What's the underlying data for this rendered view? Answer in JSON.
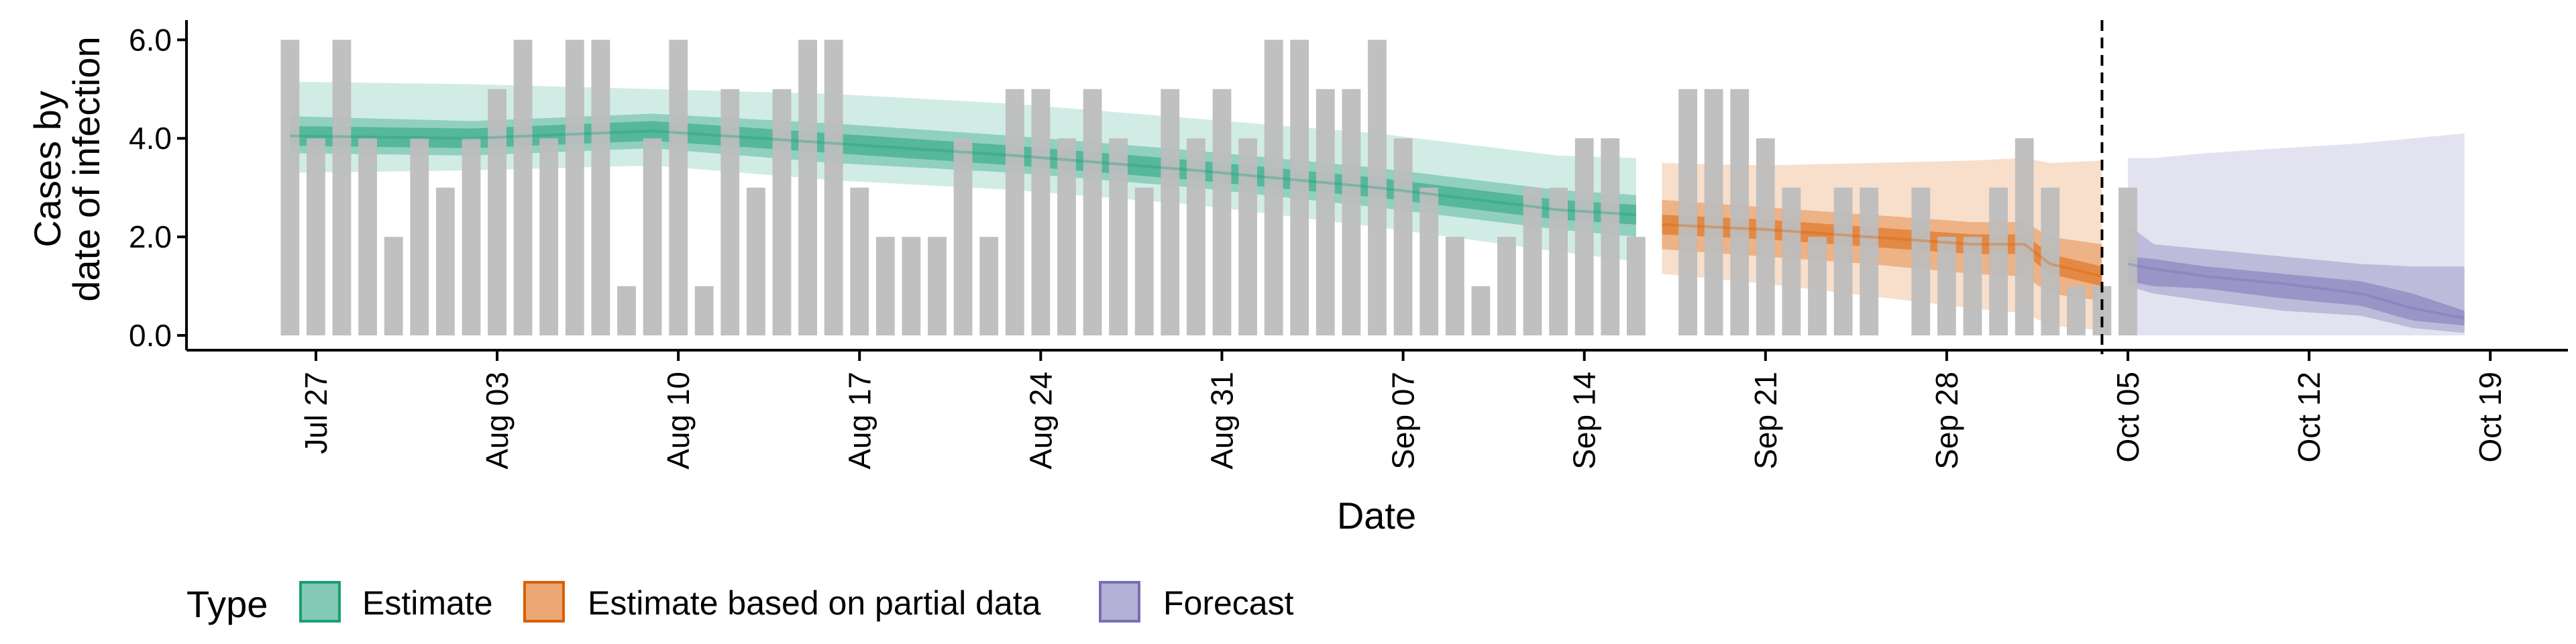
{
  "chart_data": {
    "type": "bar",
    "xlabel": "Date",
    "ylabel_lines": [
      "Cases by",
      "date of infection"
    ],
    "y_ticks": [
      "0.0",
      "2.0",
      "4.0",
      "6.0"
    ],
    "y_tick_values": [
      0,
      2,
      4,
      6
    ],
    "ylim": [
      -0.3,
      6.4
    ],
    "xlim": [
      "2020-07-22",
      "2020-10-22"
    ],
    "x_ticks": [
      {
        "date": "2020-07-27",
        "label": "Jul 27"
      },
      {
        "date": "2020-08-03",
        "label": "Aug 03"
      },
      {
        "date": "2020-08-10",
        "label": "Aug 10"
      },
      {
        "date": "2020-08-17",
        "label": "Aug 17"
      },
      {
        "date": "2020-08-24",
        "label": "Aug 24"
      },
      {
        "date": "2020-08-31",
        "label": "Aug 31"
      },
      {
        "date": "2020-09-07",
        "label": "Sep 07"
      },
      {
        "date": "2020-09-14",
        "label": "Sep 14"
      },
      {
        "date": "2020-09-21",
        "label": "Sep 21"
      },
      {
        "date": "2020-09-28",
        "label": "Sep 28"
      },
      {
        "date": "2020-10-05",
        "label": "Oct 05"
      },
      {
        "date": "2020-10-12",
        "label": "Oct 12"
      },
      {
        "date": "2020-10-19",
        "label": "Oct 19"
      }
    ],
    "bar_color": "#bdbdbd",
    "bars_start": "2020-07-26",
    "bars": [
      6,
      4,
      6,
      4,
      2,
      4,
      3,
      4,
      5,
      6,
      4,
      6,
      6,
      1,
      4,
      6,
      1,
      5,
      3,
      5,
      6,
      6,
      3,
      2,
      2,
      2,
      4,
      2,
      5,
      5,
      4,
      5,
      4,
      3,
      5,
      4,
      5,
      4,
      6,
      6,
      5,
      5,
      6,
      4,
      3,
      2,
      1,
      2,
      3,
      3,
      4,
      4,
      2,
      0,
      5,
      5,
      5,
      4,
      3,
      2,
      3,
      3,
      0,
      3,
      2,
      2,
      3,
      4,
      3,
      1,
      1,
      3
    ],
    "forecast_cutoff": "2020-10-04",
    "series": [
      {
        "name": "Estimate",
        "color": "#1b9e77",
        "dates": [
          "2020-07-26",
          "2020-08-02",
          "2020-08-09",
          "2020-08-16",
          "2020-08-23",
          "2020-08-30",
          "2020-09-06",
          "2020-09-13",
          "2020-09-16"
        ],
        "median": [
          4.05,
          4.0,
          4.15,
          3.9,
          3.65,
          3.35,
          3.0,
          2.55,
          2.45
        ],
        "ci20": [
          [
            3.85,
            4.25
          ],
          [
            3.8,
            4.2
          ],
          [
            3.95,
            4.35
          ],
          [
            3.7,
            4.1
          ],
          [
            3.45,
            3.85
          ],
          [
            3.15,
            3.55
          ],
          [
            2.8,
            3.2
          ],
          [
            2.35,
            2.75
          ],
          [
            2.25,
            2.65
          ]
        ],
        "ci50": [
          [
            3.7,
            4.45
          ],
          [
            3.65,
            4.35
          ],
          [
            3.8,
            4.5
          ],
          [
            3.5,
            4.3
          ],
          [
            3.3,
            4.05
          ],
          [
            3.0,
            3.75
          ],
          [
            2.6,
            3.4
          ],
          [
            2.15,
            2.95
          ],
          [
            2.0,
            2.85
          ]
        ],
        "ci90": [
          [
            3.3,
            5.15
          ],
          [
            3.35,
            5.1
          ],
          [
            3.45,
            5.0
          ],
          [
            3.15,
            4.9
          ],
          [
            2.95,
            4.7
          ],
          [
            2.65,
            4.4
          ],
          [
            2.2,
            4.1
          ],
          [
            1.7,
            3.65
          ],
          [
            1.5,
            3.6
          ]
        ]
      },
      {
        "name": "Estimate based on partial data",
        "color": "#d95f02",
        "dates": [
          "2020-09-17",
          "2020-09-21",
          "2020-09-25",
          "2020-09-29",
          "2020-10-01",
          "2020-10-02",
          "2020-10-04"
        ],
        "median": [
          2.25,
          2.15,
          2.0,
          1.85,
          1.85,
          1.45,
          1.2
        ],
        "ci20": [
          [
            2.05,
            2.45
          ],
          [
            1.95,
            2.35
          ],
          [
            1.8,
            2.2
          ],
          [
            1.65,
            2.05
          ],
          [
            1.65,
            2.05
          ],
          [
            1.25,
            1.65
          ],
          [
            1.0,
            1.4
          ]
        ],
        "ci50": [
          [
            1.75,
            2.75
          ],
          [
            1.6,
            2.6
          ],
          [
            1.45,
            2.45
          ],
          [
            1.25,
            2.3
          ],
          [
            1.2,
            2.3
          ],
          [
            0.85,
            2.0
          ],
          [
            0.7,
            1.85
          ]
        ],
        "ci90": [
          [
            1.25,
            3.5
          ],
          [
            1.05,
            3.45
          ],
          [
            0.8,
            3.5
          ],
          [
            0.55,
            3.55
          ],
          [
            0.45,
            3.6
          ],
          [
            0.2,
            3.5
          ],
          [
            0.1,
            3.55
          ]
        ]
      },
      {
        "name": "Forecast",
        "color": "#7570b3",
        "dates": [
          "2020-10-05",
          "2020-10-06",
          "2020-10-08",
          "2020-10-11",
          "2020-10-14",
          "2020-10-16",
          "2020-10-18"
        ],
        "median": [
          1.45,
          1.35,
          1.2,
          1.05,
          0.85,
          0.55,
          0.35
        ],
        "ci20": [
          [
            1.1,
            1.6
          ],
          [
            1.0,
            1.55
          ],
          [
            0.95,
            1.4
          ],
          [
            0.75,
            1.25
          ],
          [
            0.6,
            1.1
          ],
          [
            0.3,
            0.85
          ],
          [
            0.2,
            0.5
          ]
        ],
        "ci50": [
          [
            1.0,
            2.25
          ],
          [
            0.85,
            1.85
          ],
          [
            0.7,
            1.75
          ],
          [
            0.5,
            1.6
          ],
          [
            0.4,
            1.45
          ],
          [
            0.15,
            1.4
          ],
          [
            0.05,
            1.4
          ]
        ],
        "ci90": [
          [
            0.0,
            3.6
          ],
          [
            0.0,
            3.6
          ],
          [
            0.0,
            3.7
          ],
          [
            0.0,
            3.8
          ],
          [
            0.0,
            3.9
          ],
          [
            0.0,
            4.0
          ],
          [
            0.0,
            4.1
          ]
        ]
      }
    ],
    "legend": {
      "title": "Type",
      "position": "bottom",
      "items": [
        "Estimate",
        "Estimate based on partial data",
        "Forecast"
      ]
    }
  }
}
